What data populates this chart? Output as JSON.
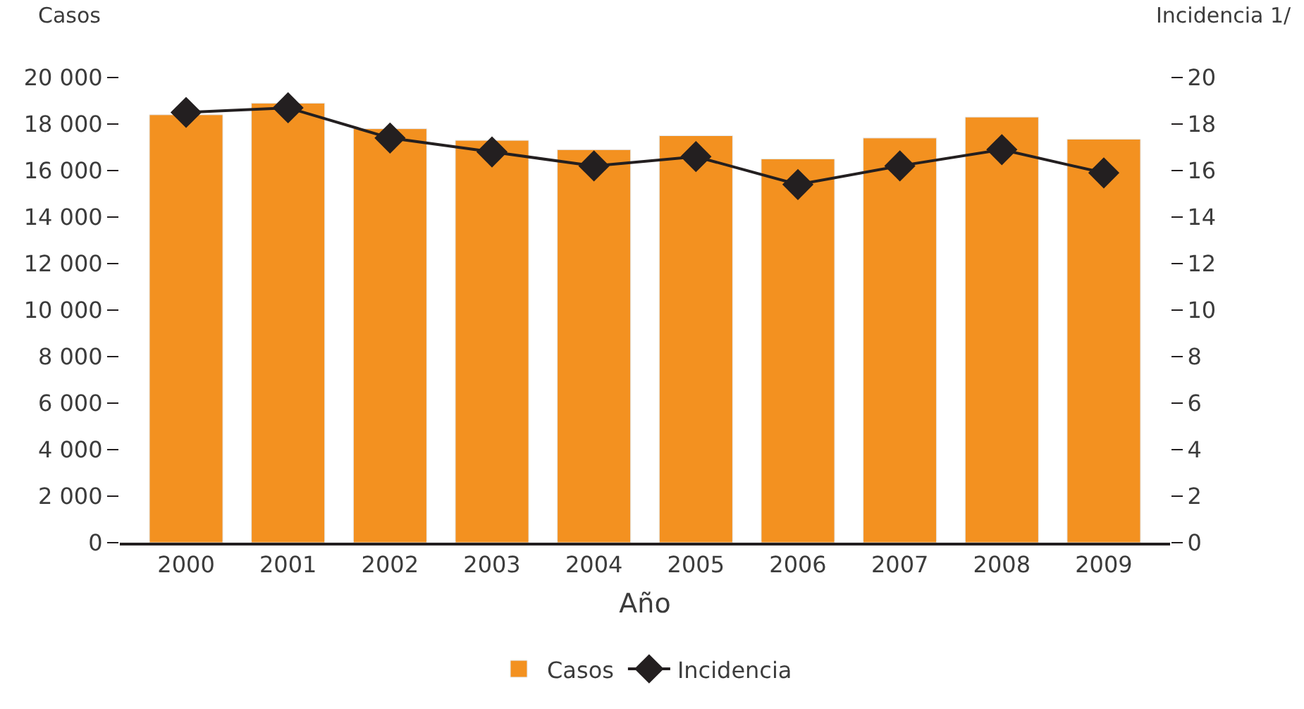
{
  "chart_data": {
    "type": "bar",
    "xlabel": "Año",
    "ylabel": "Casos",
    "y2label": "Incidencia 1/",
    "categories": [
      "2000",
      "2001",
      "2002",
      "2003",
      "2004",
      "2005",
      "2006",
      "2007",
      "2008",
      "2009"
    ],
    "series": [
      {
        "name": "Casos",
        "color": "#f39120",
        "values": [
          18400,
          18900,
          17800,
          17300,
          16900,
          17500,
          16500,
          17400,
          18300,
          17350
        ]
      },
      {
        "name": "Incidencia",
        "type": "line",
        "axis": "y2",
        "color": "#231f20",
        "marker": "diamond",
        "values": [
          18.5,
          18.7,
          17.4,
          16.8,
          16.2,
          16.6,
          15.4,
          16.2,
          16.9,
          15.9
        ]
      }
    ],
    "ylim": [
      0,
      20000
    ],
    "yticks": [
      {
        "value": 0,
        "label": "0"
      },
      {
        "value": 2000,
        "label": "2 000"
      },
      {
        "value": 4000,
        "label": "4 000"
      },
      {
        "value": 6000,
        "label": "6 000"
      },
      {
        "value": 8000,
        "label": "8 000"
      },
      {
        "value": 10000,
        "label": "10 000"
      },
      {
        "value": 12000,
        "label": "12 000"
      },
      {
        "value": 14000,
        "label": "14 000"
      },
      {
        "value": 16000,
        "label": "16 000"
      },
      {
        "value": 18000,
        "label": "18 000"
      },
      {
        "value": 20000,
        "label": "20 000"
      }
    ],
    "y2lim": [
      0,
      20
    ],
    "y2ticks": [
      0,
      2,
      4,
      6,
      8,
      10,
      12,
      14,
      16,
      18,
      20
    ],
    "legend": "bottom"
  }
}
